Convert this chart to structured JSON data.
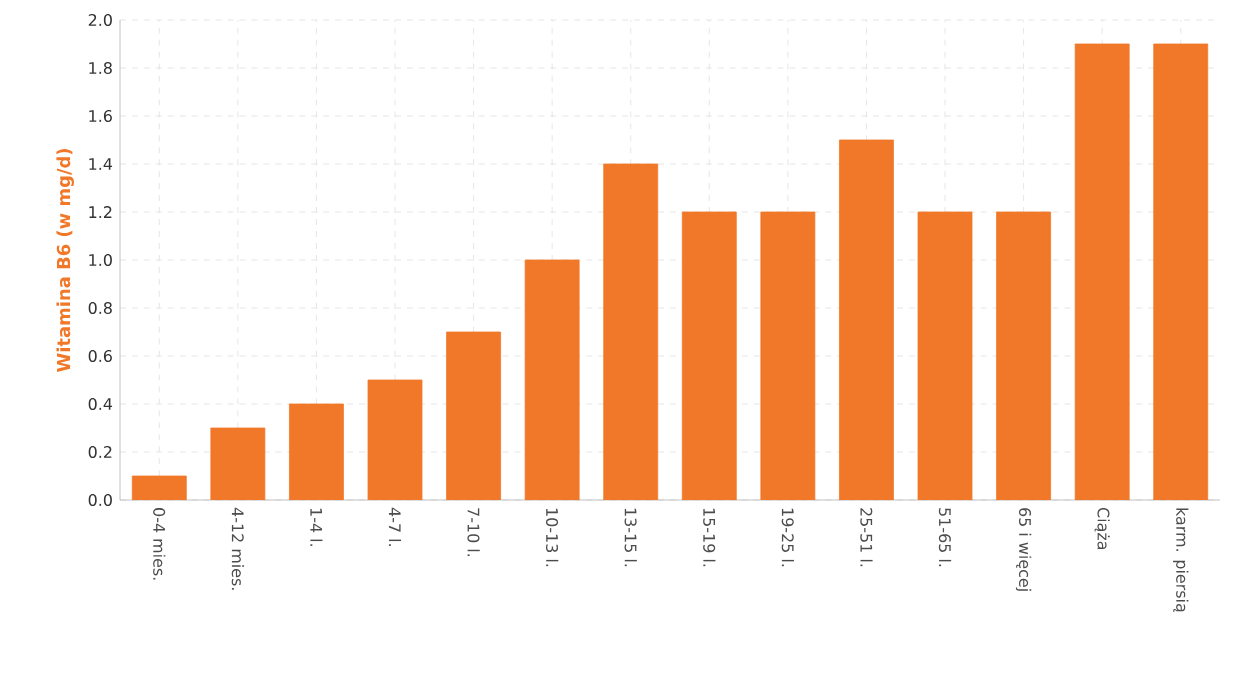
{
  "chart_data": {
    "type": "bar",
    "ylabel": "Witamina B6 (w mg/d)",
    "categories": [
      "0-4 mies.",
      "4-12 mies.",
      "1-4 l.",
      "4-7 l.",
      "7-10 l.",
      "10-13 l.",
      "13-15 l.",
      "15-19 l.",
      "19-25 l.",
      "25-51 l.",
      "51-65 l.",
      "65 i więcej",
      "Ciąża",
      "karm. piersią"
    ],
    "values": [
      0.1,
      0.3,
      0.4,
      0.5,
      0.7,
      1.0,
      1.4,
      1.2,
      1.2,
      1.5,
      1.2,
      1.2,
      1.9,
      1.9
    ],
    "color": "#f07828",
    "ylim": [
      0,
      2
    ],
    "yticks": [
      {
        "value": 0,
        "label": "0.0"
      },
      0.2,
      0.4,
      0.6,
      0.8,
      {
        "value": 1,
        "label": "1.0"
      },
      1.2,
      1.4,
      1.6,
      1.8,
      {
        "value": 2,
        "label": "2.0"
      }
    ],
    "grid": true
  }
}
